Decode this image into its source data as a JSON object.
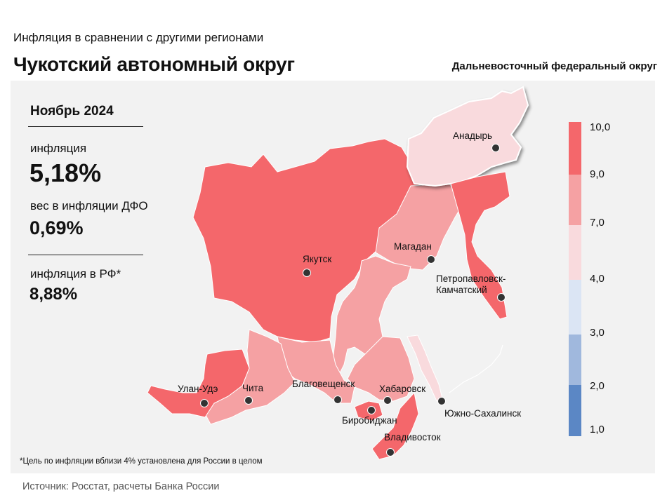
{
  "header": {
    "subtitle": "Инфляция  в сравнении  с другими  регионами",
    "title": "Чукотский автономный округ",
    "district": "Дальневосточный  федеральный  округ"
  },
  "stats": {
    "period": "Ноябрь 2024",
    "inflation_label": "инфляция",
    "inflation_value": "5,18%",
    "weight_label": "вес в инфляции  ДФО",
    "weight_value": "0,69%",
    "rf_label": "инфляция  в РФ*",
    "rf_value": "8,88%"
  },
  "map": {
    "cities": [
      {
        "key": "anadyr",
        "name": "Анадырь"
      },
      {
        "key": "yakutsk",
        "name": "Якутск"
      },
      {
        "key": "magadan",
        "name": "Магадан"
      },
      {
        "key": "petropavlovsk",
        "name": "Петропавловск-\nКамчатский"
      },
      {
        "key": "ulan_ude",
        "name": "Улан-Удэ"
      },
      {
        "key": "chita",
        "name": "Чита"
      },
      {
        "key": "blagoveshchensk",
        "name": "Благовещенск"
      },
      {
        "key": "khabarovsk",
        "name": "Хабаровск"
      },
      {
        "key": "birobidzhan",
        "name": "Биробиджан"
      },
      {
        "key": "vladivostok",
        "name": "Владивосток"
      },
      {
        "key": "yuzhno",
        "name": "Южно-Сахалинск"
      }
    ],
    "colors": {
      "above9": "#f4676b",
      "from7to9": "#f5a1a3",
      "from4to7": "#f9dadd",
      "from3to4": "#dbe5f4",
      "from2to3": "#a0b8dd",
      "from1to2": "#5b87c5"
    }
  },
  "legend": {
    "ticks": [
      "10,0",
      "9,0",
      "7,0",
      "4,0",
      "3,0",
      "2,0",
      "1,0"
    ]
  },
  "footnote": "*Цель по инфляции  вблизи 4%  установлена для  России  в целом",
  "source": "Источник: Росстат,  расчеты Банка  России"
}
